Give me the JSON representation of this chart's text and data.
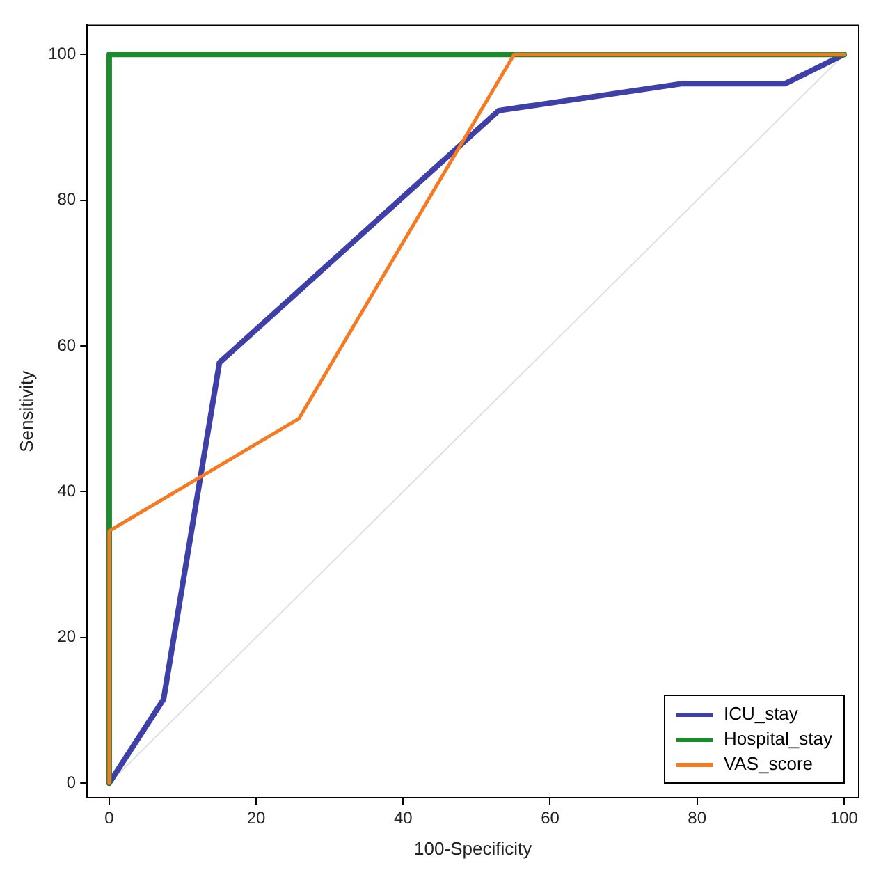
{
  "chart_data": {
    "type": "line",
    "xlabel": "100-Specificity",
    "ylabel": "Sensitivity",
    "xlim": [
      -3,
      102
    ],
    "xticks": [
      0,
      20,
      40,
      60,
      80,
      100
    ],
    "ylim": [
      -2,
      104
    ],
    "yticks": [
      0,
      20,
      40,
      60,
      80,
      100
    ],
    "grid": false,
    "legend": "bottom right",
    "marker": "none",
    "line_style": "solid",
    "series": [
      {
        "color": "#e0e0e0",
        "x": [
          0,
          100
        ],
        "values": [
          0,
          100
        ]
      },
      {
        "name": "ICU_stay",
        "color": "#3f3fa8",
        "x": [
          0,
          7.4,
          15,
          53,
          78,
          92,
          100
        ],
        "values": [
          0,
          11.5,
          57.7,
          92.3,
          96,
          96,
          100
        ]
      },
      {
        "name": "Hospital_stay",
        "color": "#1e8a2e",
        "x": [
          0,
          0,
          100
        ],
        "values": [
          0,
          100,
          100
        ]
      },
      {
        "name": "VAS_score",
        "color": "#f57a22",
        "x": [
          0,
          0,
          25.8,
          55.1,
          100
        ],
        "values": [
          0,
          34.6,
          50,
          100,
          100
        ]
      }
    ]
  }
}
